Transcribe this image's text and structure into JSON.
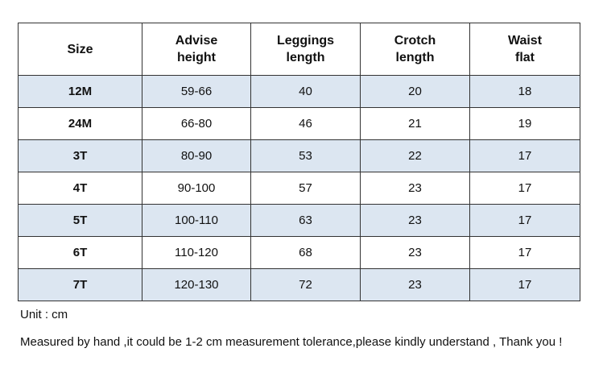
{
  "table": {
    "header": [
      [
        "Size"
      ],
      [
        "Advise",
        "height"
      ],
      [
        "Leggings",
        "length"
      ],
      [
        "Crotch",
        "length"
      ],
      [
        "Waist",
        "flat"
      ]
    ],
    "rows": [
      [
        "12M",
        "59-66",
        40,
        20,
        18
      ],
      [
        "24M",
        "66-80",
        46,
        21,
        19
      ],
      [
        "3T",
        "80-90",
        53,
        22,
        17
      ],
      [
        "4T",
        "90-100",
        57,
        23,
        17
      ],
      [
        "5T",
        "100-110",
        63,
        23,
        17
      ],
      [
        "6T",
        "110-120",
        68,
        23,
        17
      ],
      [
        "7T",
        "120-130",
        72,
        23,
        17
      ]
    ]
  },
  "notes": [
    "Unit : cm",
    "Measured by hand ,it could be 1-2 cm measurement tolerance,please kindly understand , Thank you !"
  ]
}
